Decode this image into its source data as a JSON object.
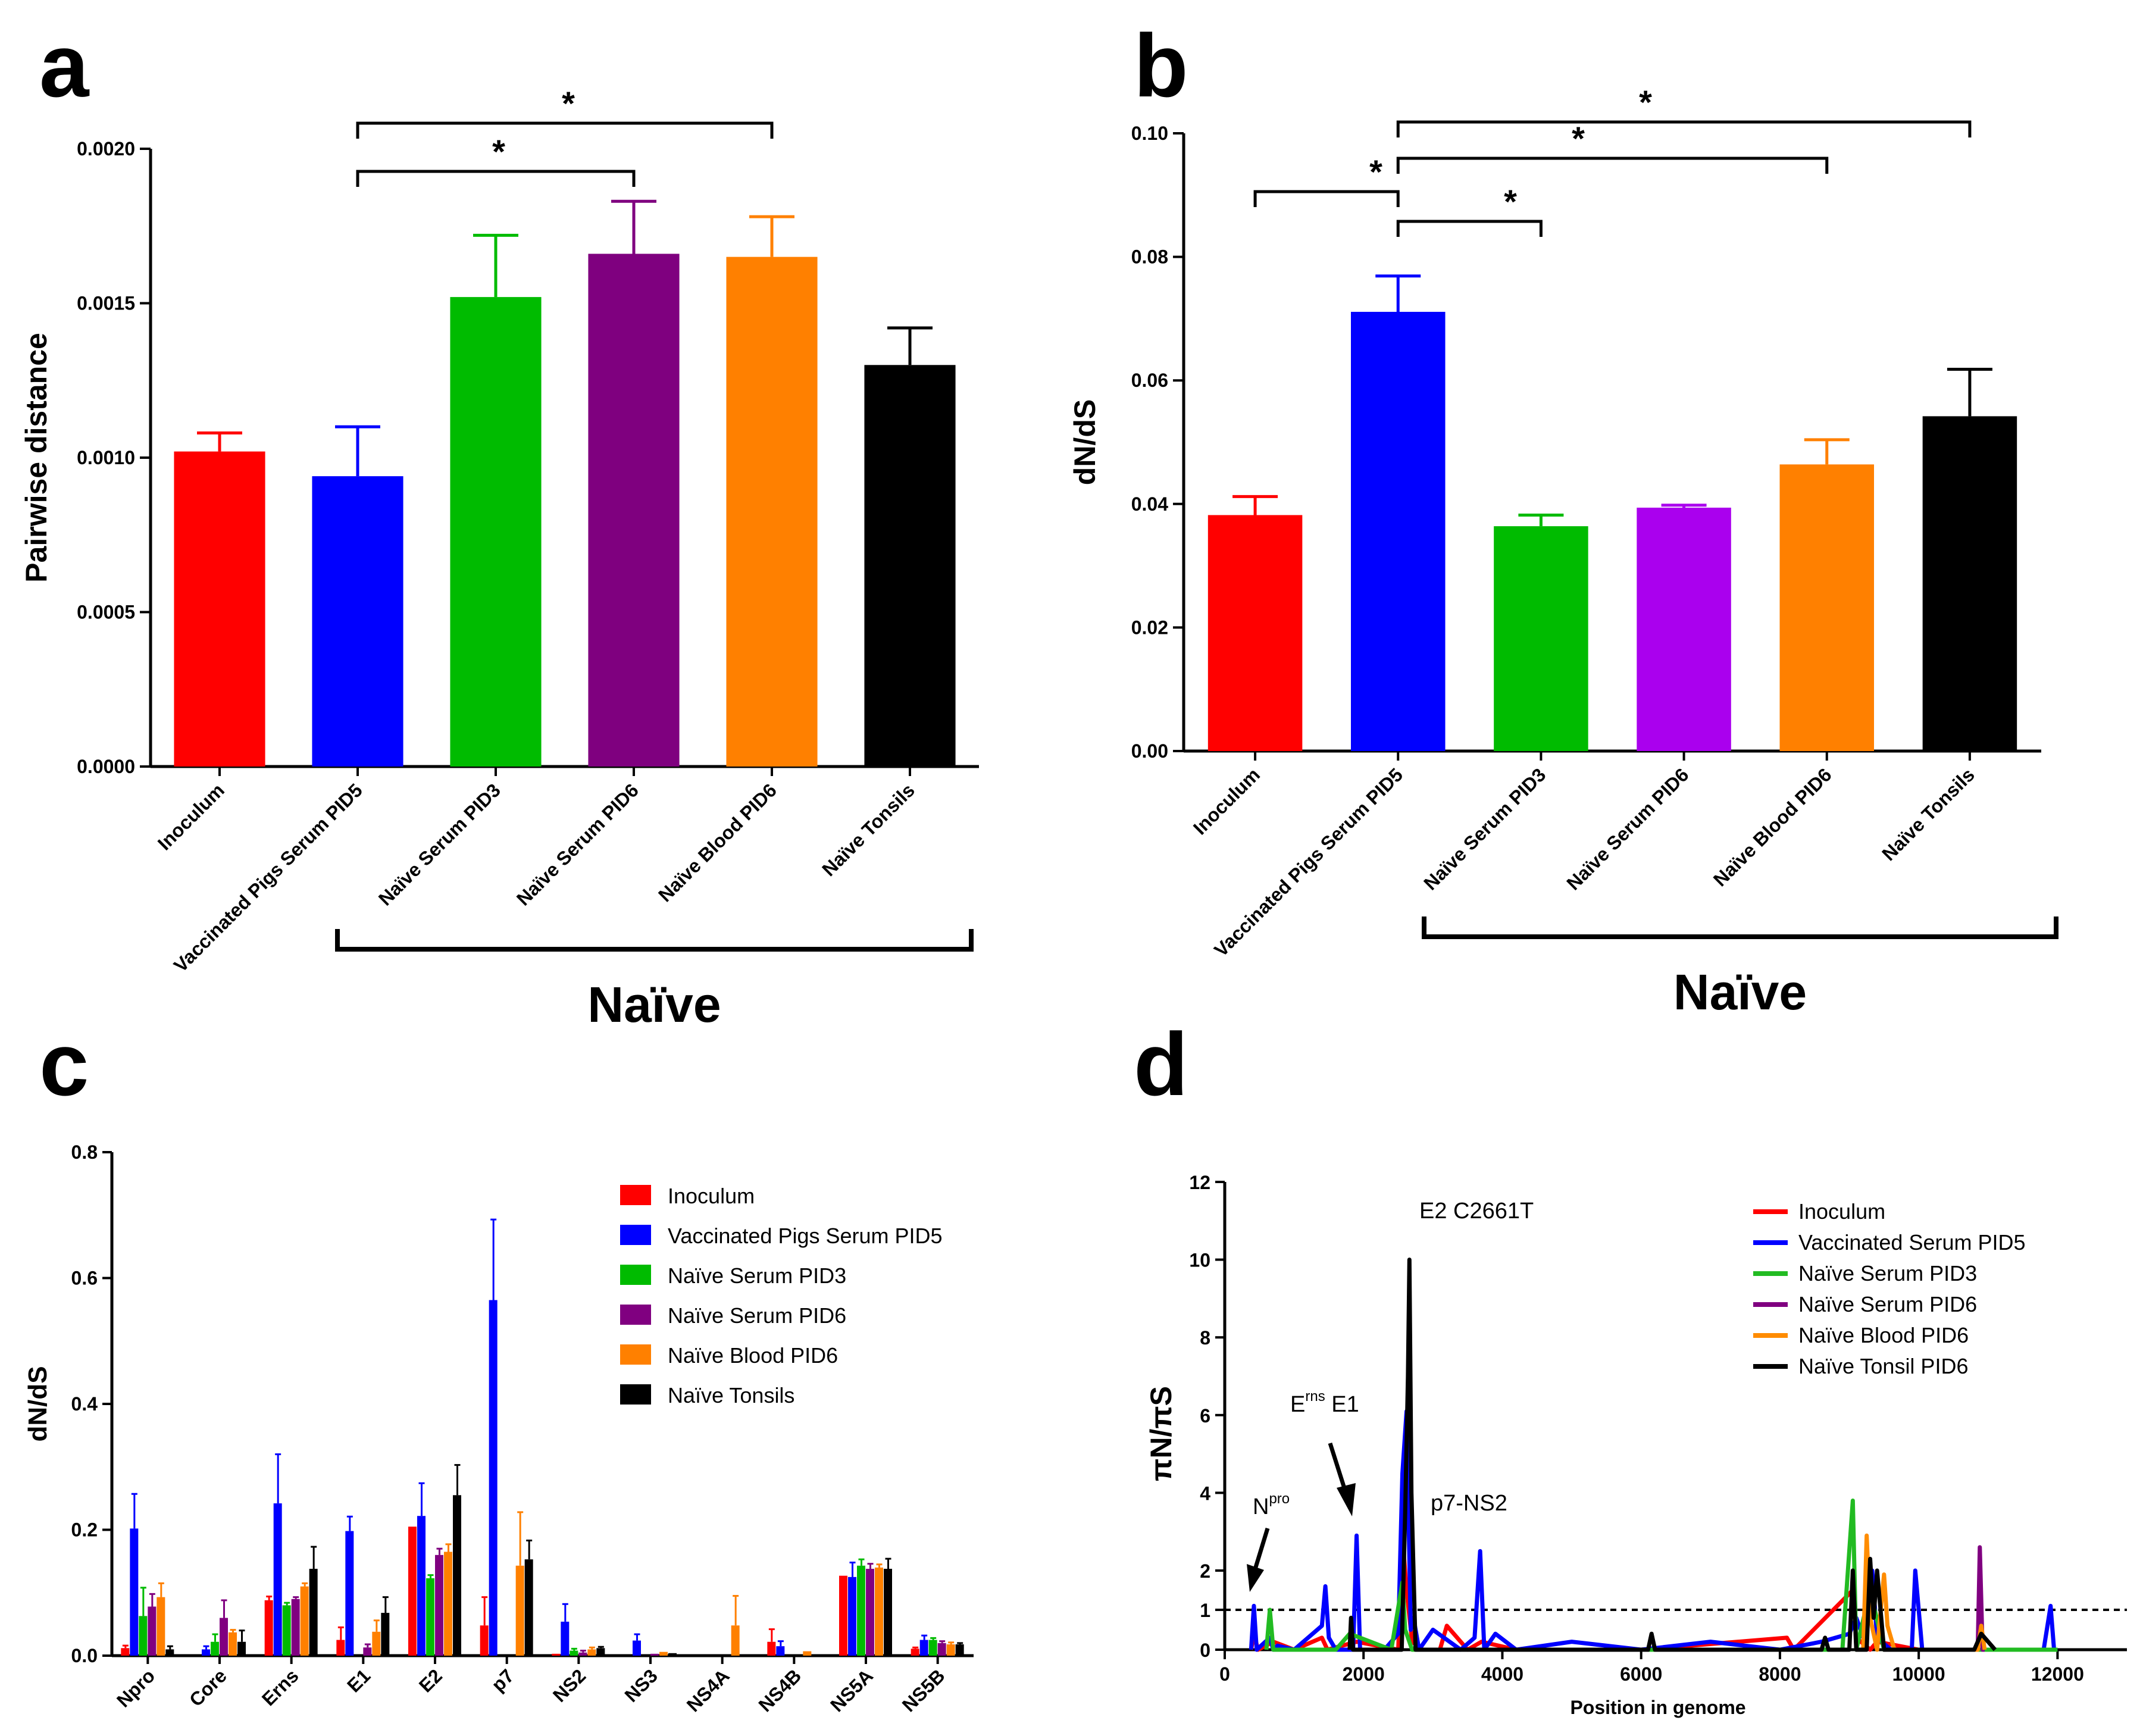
{
  "panels": {
    "a": "a",
    "b": "b",
    "c": "c",
    "d": "d"
  },
  "naive_group_label": "Naïve",
  "significance_mark": "*",
  "colors": {
    "red": "#ff0000",
    "blue": "#0000ff",
    "green": "#00bb00",
    "purple_a": "#7f007f",
    "purple_b": "#aa00ee",
    "orange": "#ff8000",
    "black": "#000000",
    "d_green": "#22bb22",
    "d_purple": "#800080",
    "d_orange": "#ff8c00"
  },
  "chart_data": [
    {
      "id": "a",
      "type": "bar",
      "title": "",
      "ylabel": "Pairwise distance",
      "xlabel": "",
      "ylim": [
        0,
        0.002
      ],
      "yticks": [
        "0.0000",
        "0.0005",
        "0.0010",
        "0.0015",
        "0.0020"
      ],
      "categories": [
        "Inoculum",
        "Vaccinated Pigs Serum PID5",
        "Naïve Serum PID3",
        "Naïve Serum PID6",
        "Naïve Blood PID6",
        "Naïve Tonsils"
      ],
      "values": [
        0.00102,
        0.00094,
        0.00152,
        0.00166,
        0.00165,
        0.0013
      ],
      "errors": [
        6e-05,
        0.00016,
        0.0002,
        0.00017,
        0.00013,
        0.00012
      ],
      "colors": [
        "#ff0000",
        "#0000ff",
        "#00bb00",
        "#7f007f",
        "#ff8000",
        "#000000"
      ],
      "significance": [
        {
          "from": "Vaccinated Pigs Serum PID5",
          "to": "Naïve Serum PID6",
          "label": "*"
        },
        {
          "from": "Vaccinated Pigs Serum PID5",
          "to": "Naïve Blood PID6",
          "label": "*"
        }
      ],
      "group_bracket": {
        "from": "Vaccinated Pigs Serum PID5",
        "to": "Naïve Tonsils",
        "label": "Naïve"
      }
    },
    {
      "id": "b",
      "type": "bar",
      "title": "",
      "ylabel": "dN/dS",
      "xlabel": "",
      "ylim": [
        0,
        0.1
      ],
      "yticks": [
        "0.00",
        "0.02",
        "0.04",
        "0.06",
        "0.08",
        "0.10"
      ],
      "categories": [
        "Inoculum",
        "Vaccinated Pigs Serum PID5",
        "Naïve Serum PID3",
        "Naïve Serum PID6",
        "Naïve Blood PID6",
        "Naïve Tonsils"
      ],
      "values": [
        0.0382,
        0.0711,
        0.0364,
        0.0394,
        0.0464,
        0.0542
      ],
      "errors": [
        0.003,
        0.0058,
        0.0018,
        0.0004,
        0.004,
        0.0076
      ],
      "colors": [
        "#ff0000",
        "#0000ff",
        "#00bb00",
        "#aa00ee",
        "#ff8000",
        "#000000"
      ],
      "significance": [
        {
          "from": "Inoculum",
          "to": "Vaccinated Pigs Serum PID5",
          "label": "*"
        },
        {
          "from": "Vaccinated Pigs Serum PID5",
          "to": "Naïve Serum PID3",
          "label": "*"
        },
        {
          "from": "Vaccinated Pigs Serum PID5",
          "to": "Naïve Blood PID6",
          "label": "*"
        },
        {
          "from": "Vaccinated Pigs Serum PID5",
          "to": "Naïve Tonsils",
          "label": "*"
        }
      ],
      "group_bracket": {
        "from": "Naïve Serum PID3",
        "to": "Naïve Tonsils",
        "label": "Naïve"
      }
    },
    {
      "id": "c",
      "type": "bar",
      "title": "",
      "ylabel": "dN/dS",
      "xlabel": "",
      "ylim": [
        0,
        0.8
      ],
      "yticks": [
        "0.0",
        "0.2",
        "0.4",
        "0.6",
        "0.8"
      ],
      "categories": [
        "Npro",
        "Core",
        "Erns",
        "E1",
        "E2",
        "p7",
        "NS2",
        "NS3",
        "NS4A",
        "NS4B",
        "NS5A",
        "NS5B"
      ],
      "legend_position": "top-right",
      "series": [
        {
          "name": "Inoculum",
          "color": "#ff0000",
          "values": [
            0.012,
            0,
            0.088,
            0.025,
            0.205,
            0.048,
            0.003,
            0,
            0,
            0.022,
            0.127,
            0.011
          ],
          "errors": [
            0.004,
            0,
            0.006,
            0.02,
            0,
            0.045,
            0,
            0,
            0,
            0.02,
            0,
            0.002
          ]
        },
        {
          "name": "Vaccinated Pigs Serum PID5",
          "color": "#0000ff",
          "values": [
            0.202,
            0.01,
            0.242,
            0.198,
            0.222,
            0.565,
            0.054,
            0.024,
            0,
            0.015,
            0.125,
            0.025
          ],
          "errors": [
            0.055,
            0.005,
            0.078,
            0.023,
            0.052,
            0.128,
            0.028,
            0.01,
            0,
            0.008,
            0.023,
            0.007
          ]
        },
        {
          "name": "Naïve Serum PID3",
          "color": "#00bb00",
          "values": [
            0.063,
            0.022,
            0.08,
            0,
            0.123,
            0,
            0.008,
            0,
            0,
            0,
            0.143,
            0.025
          ],
          "errors": [
            0.045,
            0.012,
            0.004,
            0,
            0.005,
            0,
            0.003,
            0,
            0,
            0,
            0.01,
            0.003
          ]
        },
        {
          "name": "Naïve Serum PID6",
          "color": "#800080",
          "values": [
            0.078,
            0.06,
            0.09,
            0.013,
            0.16,
            0,
            0.005,
            0.003,
            0,
            0,
            0.138,
            0.02
          ],
          "errors": [
            0.02,
            0.028,
            0.003,
            0.005,
            0.01,
            0,
            0.003,
            0,
            0,
            0,
            0.008,
            0.003
          ]
        },
        {
          "name": "Naïve Blood PID6",
          "color": "#ff8000",
          "values": [
            0.093,
            0.037,
            0.11,
            0.038,
            0.165,
            0.143,
            0.01,
            0.006,
            0.048,
            0.007,
            0.14,
            0.018
          ],
          "errors": [
            0.022,
            0.004,
            0.005,
            0.018,
            0.012,
            0.085,
            0.003,
            0,
            0.047,
            0,
            0.005,
            0.003
          ]
        },
        {
          "name": "Naïve Tonsils",
          "color": "#000000",
          "values": [
            0.01,
            0.022,
            0.138,
            0.068,
            0.255,
            0.153,
            0.012,
            0.004,
            0,
            0,
            0.138,
            0.018
          ],
          "errors": [
            0.005,
            0.018,
            0.035,
            0.025,
            0.048,
            0.03,
            0.002,
            0,
            0,
            0,
            0.016,
            0.002
          ]
        }
      ]
    },
    {
      "id": "d",
      "type": "line",
      "title": "",
      "xlabel": "Position in genome",
      "ylabel": "πN/πS",
      "xlim": [
        0,
        13000
      ],
      "ylim": [
        0,
        12
      ],
      "xticks": [
        "0",
        "2000",
        "4000",
        "6000",
        "8000",
        "10000",
        "12000"
      ],
      "yticks": [
        "0",
        "1",
        "2",
        "4",
        "6",
        "8",
        "10",
        "12"
      ],
      "reference_line": 1,
      "legend_position": "top-right",
      "annotations": [
        {
          "text": "E2 C2661T",
          "x": 2661
        },
        {
          "text": "E",
          "sup": "rns",
          "tail": " E1",
          "x": 1900
        },
        {
          "text": "p7-NS2",
          "x": 3700
        },
        {
          "text": "N",
          "sup": "pro",
          "x": 450
        }
      ],
      "series": [
        {
          "name": "Inoculum",
          "color": "#ff0000",
          "x": [
            380,
            420,
            480,
            700,
            1000,
            1400,
            1480,
            1900,
            2500,
            2560,
            2620,
            2700,
            2850,
            3100,
            3200,
            3500,
            3700,
            4200,
            6000,
            8100,
            8200,
            9050,
            9100,
            9300,
            9400,
            10000,
            11900,
            12000
          ],
          "y": [
            0,
            0.4,
            0,
            0.2,
            0,
            0.3,
            0,
            0.2,
            0,
            2.9,
            1.5,
            0.2,
            0,
            0,
            0.6,
            0,
            0.2,
            0,
            0,
            0.3,
            0,
            1.5,
            0.3,
            0,
            0.2,
            0,
            0,
            0
          ]
        },
        {
          "name": "Vaccinated Serum PID5",
          "color": "#0000ff",
          "x": [
            380,
            420,
            460,
            650,
            700,
            760,
            1000,
            1400,
            1450,
            1500,
            1600,
            1850,
            1900,
            1950,
            2300,
            2500,
            2560,
            2620,
            2680,
            2720,
            2800,
            3000,
            3400,
            3600,
            3680,
            3740,
            3900,
            4200,
            5000,
            6000,
            7000,
            8000,
            8600,
            9000,
            9100,
            9200,
            9300,
            9330,
            9400,
            9600,
            9900,
            9950,
            10050,
            10500,
            11000,
            11800,
            11900,
            11950,
            12000
          ],
          "y": [
            0,
            1.1,
            0,
            0.3,
            0,
            0.1,
            0,
            0.6,
            1.6,
            0.3,
            0,
            0,
            2.9,
            0,
            0,
            0.4,
            4.5,
            6.1,
            0.5,
            0.8,
            0,
            0.5,
            0,
            0.3,
            2.5,
            0,
            0.4,
            0,
            0.2,
            0,
            0.2,
            0,
            0.2,
            0.4,
            0.8,
            0.3,
            1.4,
            2.0,
            0.3,
            0,
            0,
            2.0,
            0,
            0,
            0,
            0,
            1.1,
            0,
            0
          ]
        },
        {
          "name": "Naïve Serum PID3",
          "color": "#22bb22",
          "x": [
            600,
            650,
            700,
            750,
            1600,
            1800,
            2400,
            2560,
            2600,
            2700,
            8900,
            9050,
            9100,
            9300,
            9500,
            9600,
            12000
          ],
          "y": [
            0,
            1.0,
            0,
            0,
            0,
            0.4,
            0,
            1.7,
            0.5,
            0,
            0,
            3.8,
            0,
            1.5,
            0,
            0,
            0
          ]
        },
        {
          "name": "Naïve Serum PID6",
          "color": "#800080",
          "x": [
            10850,
            10880,
            10920,
            10950
          ],
          "y": [
            0,
            2.6,
            0,
            0
          ]
        },
        {
          "name": "Naïve Blood PID6",
          "color": "#ff8c00",
          "x": [
            9200,
            9250,
            9300,
            9400,
            9500,
            9550,
            9650,
            10850,
            10900,
            10950
          ],
          "y": [
            0,
            2.9,
            0.8,
            0,
            1.9,
            0.6,
            0,
            0,
            0.6,
            0
          ]
        },
        {
          "name": "Naïve Tonsil PID6",
          "color": "#000000",
          "x": [
            1800,
            1820,
            1850,
            2550,
            2600,
            2640,
            2661,
            2690,
            2750,
            6100,
            6150,
            6200,
            8600,
            8650,
            8700,
            9000,
            9050,
            9100,
            9250,
            9300,
            9350,
            9400,
            9500,
            10800,
            10900,
            11000,
            11100
          ],
          "y": [
            0,
            0.8,
            0,
            0,
            3.5,
            7.0,
            10.0,
            4.0,
            0,
            0,
            0.4,
            0,
            0,
            0.3,
            0,
            0,
            2.0,
            0,
            0,
            2.3,
            0.8,
            2.0,
            0,
            0,
            0.4,
            0.2,
            0
          ]
        }
      ]
    }
  ]
}
